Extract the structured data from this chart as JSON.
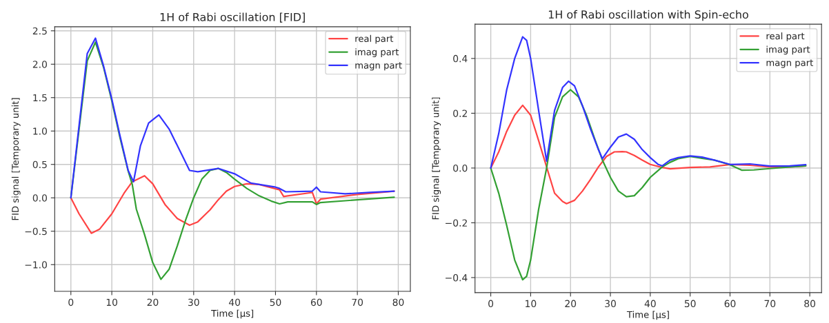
{
  "chart_data": [
    {
      "type": "line",
      "title": "1H of Rabi oscillation [FID]",
      "xlabel": "Time [µs]",
      "ylabel": "FID signal [Temporary unit]",
      "grid": true,
      "legend": "top right",
      "xlim": [
        -3.95,
        82.95
      ],
      "ylim": [
        -1.4,
        2.56
      ],
      "xticks": [
        0,
        10,
        20,
        30,
        40,
        50,
        60,
        70,
        80
      ],
      "yticks": [
        {
          "value": -1.0,
          "label": "−1.0"
        },
        {
          "value": -0.5,
          "label": "−0.5"
        },
        {
          "value": 0,
          "label": "0.0"
        },
        0.5,
        {
          "value": 1,
          "label": "1.0"
        },
        1.5,
        {
          "value": 2,
          "label": "2.0"
        },
        2.5
      ],
      "series": [
        {
          "name": "real part",
          "color": "#ff4444",
          "x": [
            0,
            2,
            5,
            7,
            10,
            13,
            15,
            18,
            20,
            23,
            26,
            29,
            31,
            33,
            34,
            36,
            38,
            40,
            43,
            46,
            51,
            52,
            53,
            59,
            60,
            61,
            70,
            79
          ],
          "values": [
            0,
            -0.24,
            -0.53,
            -0.47,
            -0.24,
            0.07,
            0.24,
            0.33,
            0.21,
            -0.1,
            -0.31,
            -0.41,
            -0.36,
            -0.24,
            -0.18,
            -0.03,
            0.1,
            0.17,
            0.21,
            0.2,
            0.12,
            0.02,
            0.03,
            0.08,
            -0.09,
            -0.02,
            0.05,
            0.1
          ]
        },
        {
          "name": "imag part",
          "color": "#33a033",
          "x": [
            0,
            4,
            6,
            8,
            10,
            12,
            14,
            15,
            16,
            18,
            20,
            22,
            24,
            26,
            28,
            30,
            32,
            34,
            36,
            38,
            40,
            43,
            46,
            49,
            51,
            53,
            59,
            60,
            61,
            70,
            79
          ],
          "values": [
            0,
            2.05,
            2.33,
            1.95,
            1.45,
            0.9,
            0.4,
            0.2,
            -0.17,
            -0.55,
            -0.97,
            -1.22,
            -1.07,
            -0.72,
            -0.34,
            0.0,
            0.28,
            0.41,
            0.44,
            0.38,
            0.28,
            0.14,
            0.03,
            -0.05,
            -0.09,
            -0.06,
            -0.06,
            -0.1,
            -0.07,
            -0.03,
            0.01
          ]
        },
        {
          "name": "magn part",
          "color": "#3333ff",
          "x": [
            0,
            4,
            6,
            8,
            10,
            12,
            14,
            15.3,
            17,
            19,
            21.5,
            24,
            27,
            29,
            31,
            36,
            40,
            44,
            50,
            51,
            52.5,
            59,
            60,
            61,
            67,
            73,
            79
          ],
          "values": [
            0,
            2.16,
            2.39,
            1.97,
            1.48,
            0.93,
            0.41,
            0.24,
            0.78,
            1.12,
            1.24,
            1.03,
            0.66,
            0.41,
            0.39,
            0.44,
            0.36,
            0.22,
            0.16,
            0.14,
            0.09,
            0.1,
            0.16,
            0.09,
            0.06,
            0.08,
            0.1
          ]
        }
      ]
    },
    {
      "type": "line",
      "title": "1H of Rabi oscillation with Spin-echo",
      "xlabel": "Time [µs]",
      "ylabel": "FID signal [Temporary unit]",
      "grid": true,
      "legend": "top right",
      "xlim": [
        -3.95,
        82.95
      ],
      "ylim": [
        -0.455,
        0.525
      ],
      "xticks": [
        0,
        10,
        20,
        30,
        40,
        50,
        60,
        70,
        80
      ],
      "yticks": [
        {
          "value": -0.4,
          "label": "−0.4"
        },
        {
          "value": -0.2,
          "label": "−0.2"
        },
        {
          "value": 0,
          "label": "0.0"
        },
        0.2,
        0.4
      ],
      "series": [
        {
          "name": "real part",
          "color": "#ff4444",
          "x": [
            0,
            2,
            4,
            6,
            8,
            10,
            12,
            14,
            16,
            18,
            19,
            21,
            23,
            25,
            27,
            29,
            31,
            33,
            34,
            36,
            38,
            40,
            43,
            45,
            50,
            55,
            60,
            65,
            70,
            75,
            79
          ],
          "values": [
            0,
            0.059,
            0.134,
            0.193,
            0.229,
            0.193,
            0.1,
            0.004,
            -0.092,
            -0.122,
            -0.13,
            -0.118,
            -0.084,
            -0.042,
            0.004,
            0.042,
            0.059,
            0.06,
            0.059,
            0.046,
            0.029,
            0.013,
            0.002,
            -0.003,
            0.002,
            0.004,
            0.013,
            0.01,
            0.004,
            0.004,
            0.008
          ]
        },
        {
          "name": "imag part",
          "color": "#33a033",
          "x": [
            0,
            2,
            4,
            6,
            8,
            9,
            10,
            12,
            14,
            16,
            18,
            20,
            22,
            24,
            26,
            28,
            30,
            32,
            34,
            36,
            38,
            40,
            43,
            45,
            47,
            50,
            56,
            60,
            63,
            66,
            70,
            75,
            79
          ],
          "values": [
            0,
            -0.092,
            -0.21,
            -0.336,
            -0.408,
            -0.395,
            -0.336,
            -0.151,
            0.0,
            0.185,
            0.26,
            0.286,
            0.26,
            0.193,
            0.109,
            0.029,
            -0.034,
            -0.084,
            -0.105,
            -0.101,
            -0.071,
            -0.034,
            0.004,
            0.021,
            0.034,
            0.042,
            0.029,
            0.012,
            -0.008,
            -0.007,
            -0.002,
            0.004,
            0.008
          ]
        },
        {
          "name": "magn part",
          "color": "#3333ff",
          "x": [
            0,
            2,
            4,
            6,
            8,
            9,
            10,
            12,
            14,
            16,
            18,
            19.5,
            21,
            23,
            25,
            27,
            28,
            30,
            32,
            34,
            36,
            38,
            40,
            42,
            43,
            45,
            47,
            50,
            53,
            56,
            60,
            65,
            70,
            75,
            79
          ],
          "values": [
            0,
            0.126,
            0.286,
            0.4,
            0.479,
            0.466,
            0.4,
            0.21,
            0.025,
            0.21,
            0.294,
            0.317,
            0.3,
            0.227,
            0.143,
            0.067,
            0.034,
            0.076,
            0.113,
            0.124,
            0.105,
            0.067,
            0.038,
            0.013,
            0.008,
            0.029,
            0.038,
            0.044,
            0.04,
            0.029,
            0.013,
            0.015,
            0.007,
            0.008,
            0.012
          ]
        }
      ]
    }
  ]
}
